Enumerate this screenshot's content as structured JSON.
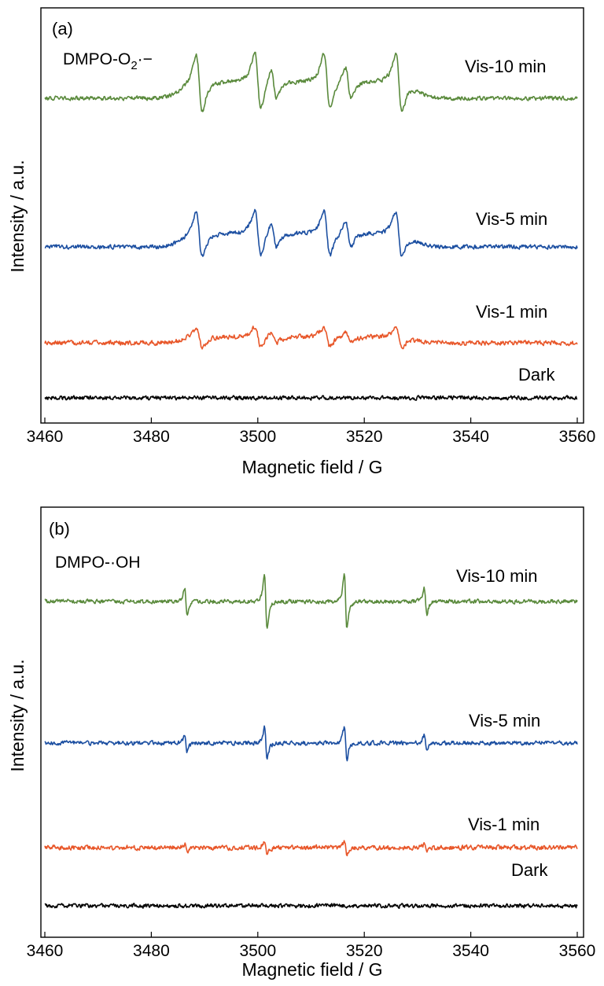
{
  "colors": {
    "Vis-10 min": "#5a8a3c",
    "Vis-5 min": "#1c4fa1",
    "Vis-1 min": "#e8572a",
    "Dark": "#000000"
  },
  "chart_data": [
    {
      "type": "line",
      "panel": "(a)",
      "species_label": {
        "main": "DMPO-O",
        "sub": "2",
        "sup": "·−"
      },
      "xlabel": "Magnetic field / G",
      "ylabel": "Intensity / a.u.",
      "xlim": [
        3460,
        3560
      ],
      "x_ticks": [
        3460,
        3480,
        3500,
        3520,
        3540,
        3560
      ],
      "y_ticks": "none",
      "grid": false,
      "legend": "labels placed to the right of each trace",
      "signal": "DMPO-superoxide adduct: four main lines with shoulders near 3489, 3500, 3513, 3526 G",
      "peaks_G": [
        {
          "field": 3489.0,
          "relative": 1.0,
          "shape": "broad"
        },
        {
          "field": 3500.0,
          "relative": 1.0,
          "shape": "broad"
        },
        {
          "field": 3503.0,
          "relative": 0.55,
          "shape": "shoulder"
        },
        {
          "field": 3513.0,
          "relative": 1.0,
          "shape": "broad"
        },
        {
          "field": 3517.0,
          "relative": 0.55,
          "shape": "shoulder"
        },
        {
          "field": 3526.5,
          "relative": 1.0,
          "shape": "broad"
        }
      ],
      "series": [
        {
          "name": "Vis-10 min",
          "baseline": 0.0,
          "relative_amplitude": 1.0
        },
        {
          "name": "Vis-5 min",
          "baseline": 0.0,
          "relative_amplitude": 0.8
        },
        {
          "name": "Vis-1 min",
          "baseline": 0.0,
          "relative_amplitude": 0.35
        },
        {
          "name": "Dark",
          "baseline": 0.0,
          "relative_amplitude": 0.0
        }
      ]
    },
    {
      "type": "line",
      "panel": "(b)",
      "species_label": {
        "main": "DMPO-·OH"
      },
      "xlabel": "Magnetic field / G",
      "ylabel": "Intensity / a.u.",
      "xlim": [
        3460,
        3560
      ],
      "x_ticks": [
        3460,
        3480,
        3500,
        3520,
        3540,
        3560
      ],
      "y_ticks": "none",
      "grid": false,
      "legend": "labels placed to the right of each trace",
      "signal": "DMPO-hydroxyl adduct: 1:2:2:1 quartet",
      "peaks_G": [
        {
          "field": 3486.5,
          "relative": 0.5,
          "shape": "sharp"
        },
        {
          "field": 3501.5,
          "relative": 1.0,
          "shape": "sharp"
        },
        {
          "field": 3516.5,
          "relative": 1.0,
          "shape": "sharp"
        },
        {
          "field": 3531.5,
          "relative": 0.5,
          "shape": "sharp"
        }
      ],
      "series": [
        {
          "name": "Vis-10 min",
          "baseline": 0.0,
          "relative_amplitude": 1.0
        },
        {
          "name": "Vis-5 min",
          "baseline": 0.0,
          "relative_amplitude": 0.6
        },
        {
          "name": "Vis-1 min",
          "baseline": 0.0,
          "relative_amplitude": 0.25
        },
        {
          "name": "Dark",
          "baseline": 0.0,
          "relative_amplitude": 0.0
        }
      ]
    }
  ]
}
